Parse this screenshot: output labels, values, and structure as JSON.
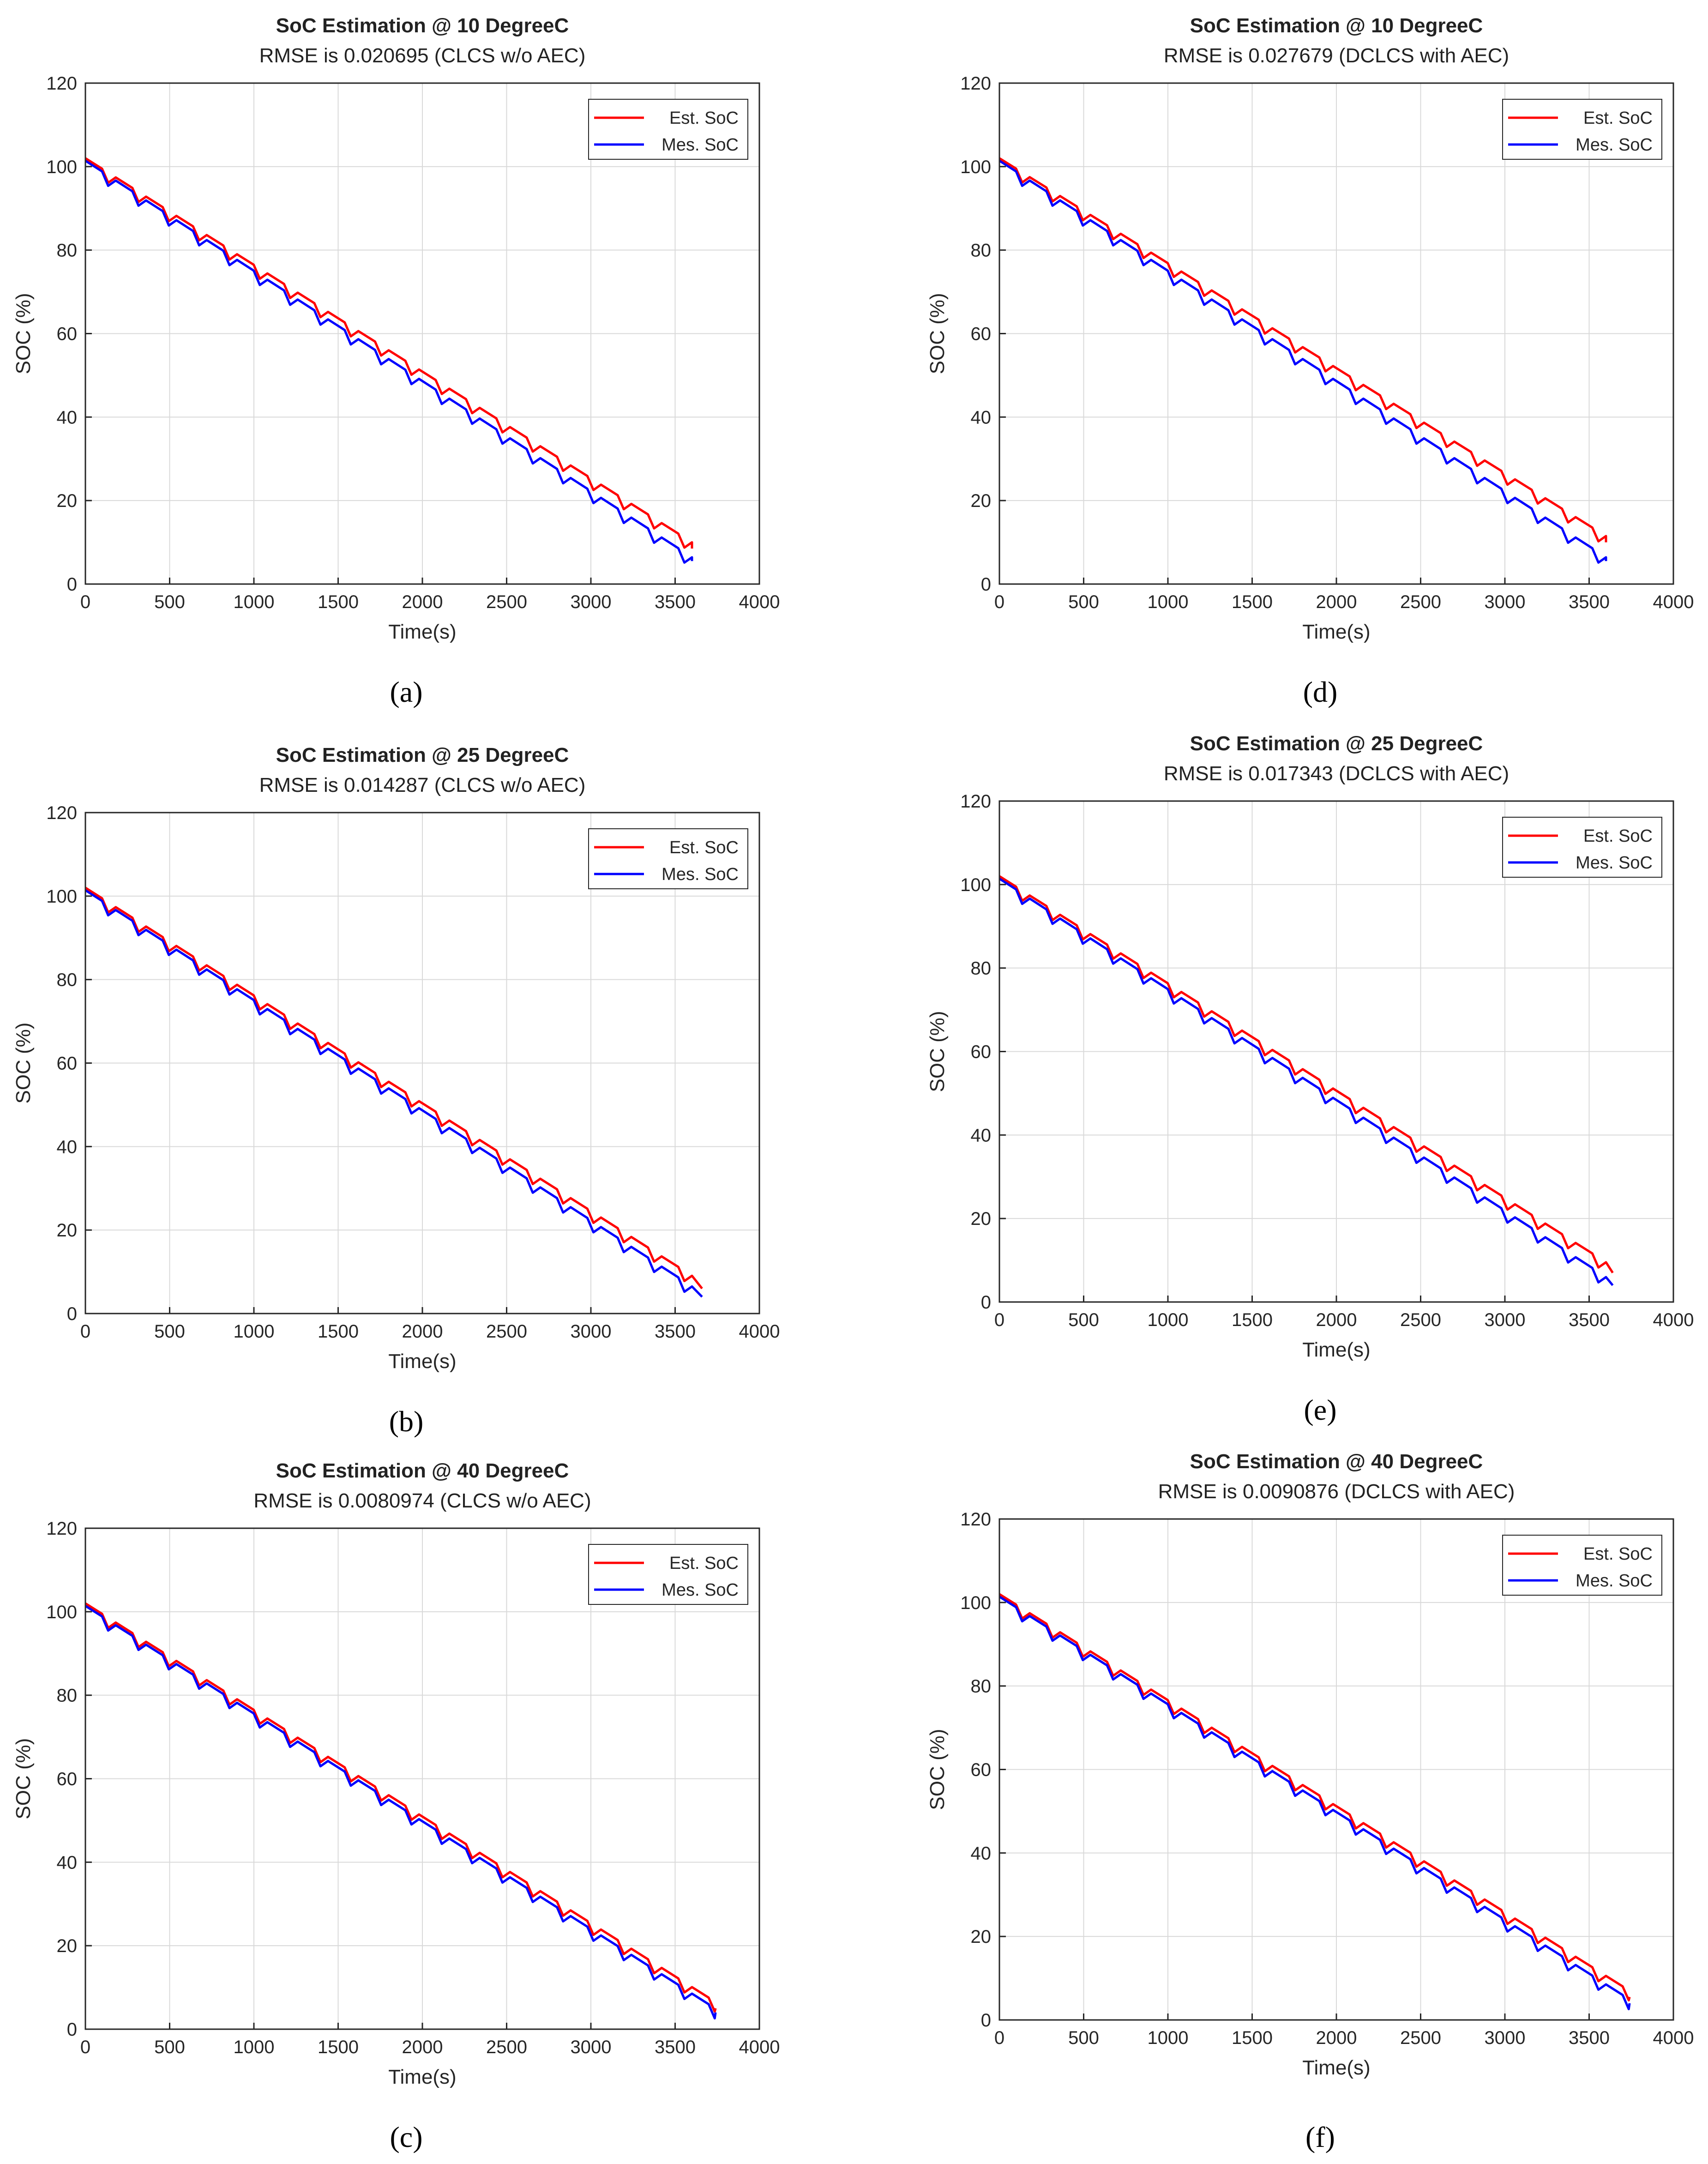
{
  "figure": {
    "captions": [
      "(a)",
      "(b)",
      "(c)",
      "(d)",
      "(e)",
      "(f)"
    ]
  },
  "colors": {
    "est": "#ff0000",
    "mes": "#0000ff",
    "grid": "#d9d9d9",
    "axes": "#262626"
  },
  "chart_data": [
    {
      "panel": "a",
      "type": "line",
      "title": "SoC Estimation @ 10 DegreeC",
      "subtitle": "RMSE is 0.020695 (CLCS w/o AEC)",
      "xlabel": "Time(s)",
      "ylabel": "SOC (%)",
      "xlim": [
        0,
        4000
      ],
      "ylim": [
        0,
        120
      ],
      "xticks": [
        0,
        500,
        1000,
        1500,
        2000,
        2500,
        3000,
        3500,
        4000
      ],
      "yticks": [
        0,
        20,
        40,
        60,
        80,
        100,
        120
      ],
      "grid": true,
      "legend_position": "top-right",
      "series": [
        {
          "name": "Est. SoC",
          "color": "#ff0000",
          "x": [
            0,
            3600
          ],
          "y": [
            100.5,
            8.5
          ]
        },
        {
          "name": "Mes. SoC",
          "color": "#0000ff",
          "x": [
            0,
            3600
          ],
          "y": [
            100.5,
            5.5
          ]
        }
      ]
    },
    {
      "panel": "b",
      "type": "line",
      "title": "SoC Estimation @ 25 DegreeC",
      "subtitle": "RMSE is 0.014287 (CLCS w/o AEC)",
      "xlabel": "Time(s)",
      "ylabel": "SOC (%)",
      "xlim": [
        0,
        4000
      ],
      "ylim": [
        0,
        120
      ],
      "xticks": [
        0,
        500,
        1000,
        1500,
        2000,
        2500,
        3000,
        3500,
        4000
      ],
      "yticks": [
        0,
        20,
        40,
        60,
        80,
        100,
        120
      ],
      "grid": true,
      "legend_position": "top-right",
      "series": [
        {
          "name": "Est. SoC",
          "color": "#ff0000",
          "x": [
            0,
            3660
          ],
          "y": [
            100.5,
            6
          ]
        },
        {
          "name": "Mes. SoC",
          "color": "#0000ff",
          "x": [
            0,
            3660
          ],
          "y": [
            100.5,
            4
          ]
        }
      ]
    },
    {
      "panel": "c",
      "type": "line",
      "title": "SoC Estimation @ 40 DegreeC",
      "subtitle": "RMSE is 0.0080974 (CLCS w/o AEC)",
      "xlabel": "Time(s)",
      "ylabel": "SOC (%)",
      "xlim": [
        0,
        4000
      ],
      "ylim": [
        0,
        120
      ],
      "xticks": [
        0,
        500,
        1000,
        1500,
        2000,
        2500,
        3000,
        3500,
        4000
      ],
      "yticks": [
        0,
        20,
        40,
        60,
        80,
        100,
        120
      ],
      "grid": true,
      "legend_position": "top-right",
      "series": [
        {
          "name": "Est. SoC",
          "color": "#ff0000",
          "x": [
            0,
            3740
          ],
          "y": [
            100.5,
            5
          ]
        },
        {
          "name": "Mes. SoC",
          "color": "#0000ff",
          "x": [
            0,
            3740
          ],
          "y": [
            100.5,
            4
          ]
        }
      ]
    },
    {
      "panel": "d",
      "type": "line",
      "title": "SoC Estimation @ 10 DegreeC",
      "subtitle": "RMSE is 0.027679 (DCLCS with AEC)",
      "xlabel": "Time(s)",
      "ylabel": "SOC (%)",
      "xlim": [
        0,
        4000
      ],
      "ylim": [
        0,
        120
      ],
      "xticks": [
        0,
        500,
        1000,
        1500,
        2000,
        2500,
        3000,
        3500,
        4000
      ],
      "yticks": [
        0,
        20,
        40,
        60,
        80,
        100,
        120
      ],
      "grid": true,
      "legend_position": "top-right",
      "series": [
        {
          "name": "Est. SoC",
          "color": "#ff0000",
          "x": [
            0,
            3600
          ],
          "y": [
            100.5,
            10
          ]
        },
        {
          "name": "Mes. SoC",
          "color": "#0000ff",
          "x": [
            0,
            3600
          ],
          "y": [
            100.5,
            5.5
          ]
        }
      ]
    },
    {
      "panel": "e",
      "type": "line",
      "title": "SoC Estimation @ 25 DegreeC",
      "subtitle": "RMSE is 0.017343 (DCLCS with AEC)",
      "xlabel": "Time(s)",
      "ylabel": "SOC (%)",
      "xlim": [
        0,
        4000
      ],
      "ylim": [
        0,
        120
      ],
      "xticks": [
        0,
        500,
        1000,
        1500,
        2000,
        2500,
        3000,
        3500,
        4000
      ],
      "yticks": [
        0,
        20,
        40,
        60,
        80,
        100,
        120
      ],
      "grid": true,
      "legend_position": "top-right",
      "series": [
        {
          "name": "Est. SoC",
          "color": "#ff0000",
          "x": [
            0,
            3640
          ],
          "y": [
            100.5,
            7
          ]
        },
        {
          "name": "Mes. SoC",
          "color": "#0000ff",
          "x": [
            0,
            3640
          ],
          "y": [
            100.5,
            4
          ]
        }
      ]
    },
    {
      "panel": "f",
      "type": "line",
      "title": "SoC Estimation @ 40 DegreeC",
      "subtitle": "RMSE is 0.0090876 (DCLCS with AEC)",
      "xlabel": "Time(s)",
      "ylabel": "SOC (%)",
      "xlim": [
        0,
        4000
      ],
      "ylim": [
        0,
        120
      ],
      "xticks": [
        0,
        500,
        1000,
        1500,
        2000,
        2500,
        3000,
        3500,
        4000
      ],
      "yticks": [
        0,
        20,
        40,
        60,
        80,
        100,
        120
      ],
      "grid": true,
      "legend_position": "top-right",
      "series": [
        {
          "name": "Est. SoC",
          "color": "#ff0000",
          "x": [
            0,
            3740
          ],
          "y": [
            100.5,
            5.5
          ]
        },
        {
          "name": "Mes. SoC",
          "color": "#0000ff",
          "x": [
            0,
            3740
          ],
          "y": [
            100.5,
            4
          ]
        }
      ]
    }
  ]
}
